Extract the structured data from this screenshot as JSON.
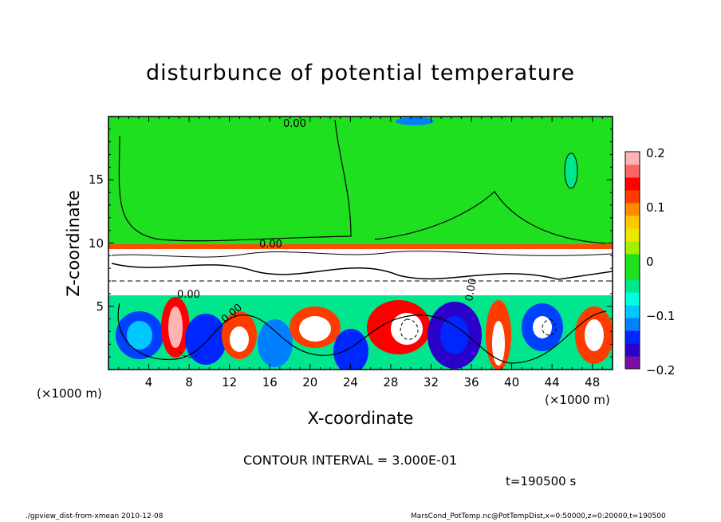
{
  "chart_data": {
    "type": "heatmap",
    "title": "disturbunce of potential temperature",
    "xlabel": "X-coordinate",
    "ylabel": "Z-coordinate",
    "x_unit_left": "(×1000 m)",
    "x_unit_right": "(×1000 m)",
    "xlim": [
      0,
      50
    ],
    "ylim": [
      0,
      20
    ],
    "x_ticks": [
      "4",
      "8",
      "12",
      "16",
      "20",
      "24",
      "28",
      "32",
      "36",
      "40",
      "44",
      "48"
    ],
    "y_ticks": [
      "5",
      "10",
      "15"
    ],
    "colorbar": {
      "range": [
        -0.2,
        0.2
      ],
      "tick_labels": [
        "0.2",
        "0.1",
        "0",
        "−0.1",
        "−0.2"
      ],
      "colors": [
        "#7a0fa8",
        "#2b00c8",
        "#0026ff",
        "#0080ff",
        "#00c8ff",
        "#00ffe0",
        "#00e68c",
        "#1fe01f",
        "#1fe01f",
        "#a0f000",
        "#e8e800",
        "#ffc800",
        "#ff8c00",
        "#ff3c00",
        "#ff0000",
        "#ff6464",
        "#ffb4b4"
      ]
    },
    "contour_labels": [
      "0.00",
      "0.00",
      "0.00",
      "0.00",
      "0.00"
    ],
    "contour_interval": "CONTOUR INTERVAL = 3.000E-01",
    "time": "t=190500 s",
    "footer_left": "./gpview_dist-from-xmean   2010-12-08",
    "footer_right": "MarsCond_PotTemp.nc@PotTempDist,x=0:50000,z=0:20000,t=190500"
  }
}
